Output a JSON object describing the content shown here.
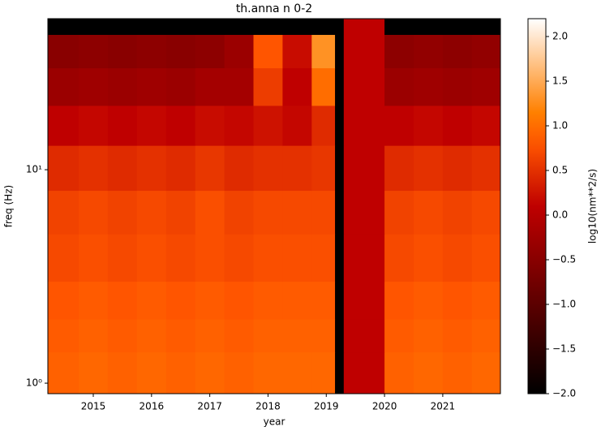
{
  "chart_data": {
    "type": "heatmap",
    "title": "th.anna n 0-2",
    "xlabel": "year",
    "ylabel": "freq (Hz)",
    "colorbar_label": "log10(nm**2/s)",
    "yscale": "log",
    "colormap": "gist_heat",
    "xlim": [
      2014.22,
      2021.99
    ],
    "xticks": [
      2015,
      2016,
      2017,
      2018,
      2019,
      2020,
      2021
    ],
    "ylim": [
      0.893,
      51
    ],
    "yticks": [
      {
        "value": 1,
        "label": "10⁰"
      },
      {
        "value": 10,
        "label": "10¹"
      }
    ],
    "clim": [
      -2,
      2.2
    ],
    "cticks": [
      {
        "value": -2,
        "label": "−2.0"
      },
      {
        "value": -1.5,
        "label": "−1.5"
      },
      {
        "value": -1,
        "label": "−1.0"
      },
      {
        "value": -0.5,
        "label": "−0.5"
      },
      {
        "value": 0,
        "label": "0.0"
      },
      0.5,
      {
        "value": 1,
        "label": "1.0"
      },
      1.5,
      {
        "value": 2,
        "label": "2.0"
      }
    ],
    "x_edges": [
      2014.22,
      2014.75,
      2015.25,
      2015.75,
      2016.25,
      2016.75,
      2017.25,
      2017.75,
      2018.25,
      2018.75,
      2019.15,
      2019.3,
      2020.0,
      2020.5,
      2021.0,
      2021.5,
      2021.99
    ],
    "y_edges": [
      0.893,
      1.4,
      2,
      3,
      5,
      8,
      13,
      20,
      30,
      43,
      51
    ],
    "z": [
      [
        0.9,
        0.95,
        0.9,
        0.95,
        0.9,
        0.95,
        0.9,
        0.95,
        0.95,
        0.95,
        -2,
        0.1,
        0.9,
        0.95,
        0.9,
        0.95
      ],
      [
        0.85,
        0.9,
        0.85,
        0.9,
        0.85,
        0.9,
        0.85,
        0.9,
        0.9,
        0.9,
        -2,
        0.1,
        0.85,
        0.9,
        0.85,
        0.9
      ],
      [
        0.8,
        0.85,
        0.8,
        0.85,
        0.8,
        0.85,
        0.8,
        0.85,
        0.85,
        0.85,
        -2,
        0.1,
        0.8,
        0.85,
        0.8,
        0.85
      ],
      [
        0.7,
        0.75,
        0.7,
        0.75,
        0.7,
        0.75,
        0.7,
        0.75,
        0.75,
        0.75,
        -2,
        0.1,
        0.7,
        0.75,
        0.7,
        0.75
      ],
      [
        0.65,
        0.7,
        0.65,
        0.7,
        0.65,
        0.75,
        0.65,
        0.7,
        0.7,
        0.7,
        -2,
        0.1,
        0.65,
        0.7,
        0.65,
        0.7
      ],
      [
        0.45,
        0.5,
        0.45,
        0.5,
        0.45,
        0.55,
        0.45,
        0.5,
        0.5,
        0.55,
        -2,
        0.1,
        0.45,
        0.5,
        0.45,
        0.5
      ],
      [
        0.1,
        0.15,
        0.1,
        0.15,
        0.1,
        0.2,
        0.15,
        0.25,
        0.15,
        0.45,
        -2,
        0.1,
        0.1,
        0.15,
        0.1,
        0.15
      ],
      [
        -0.3,
        -0.25,
        -0.3,
        -0.25,
        -0.3,
        -0.2,
        -0.2,
        0.6,
        0.1,
        1.0,
        -2,
        0.1,
        -0.3,
        -0.25,
        -0.3,
        -0.25
      ],
      [
        -0.5,
        -0.45,
        -0.5,
        -0.45,
        -0.5,
        -0.45,
        -0.3,
        0.8,
        0.2,
        1.3,
        -2,
        0.1,
        -0.45,
        -0.4,
        -0.45,
        -0.4
      ],
      [
        -2,
        -2,
        -2,
        -2,
        -2,
        -2,
        -2,
        -2,
        -2,
        -2,
        -2,
        0.1,
        -2,
        -2,
        -2,
        -2
      ]
    ]
  }
}
